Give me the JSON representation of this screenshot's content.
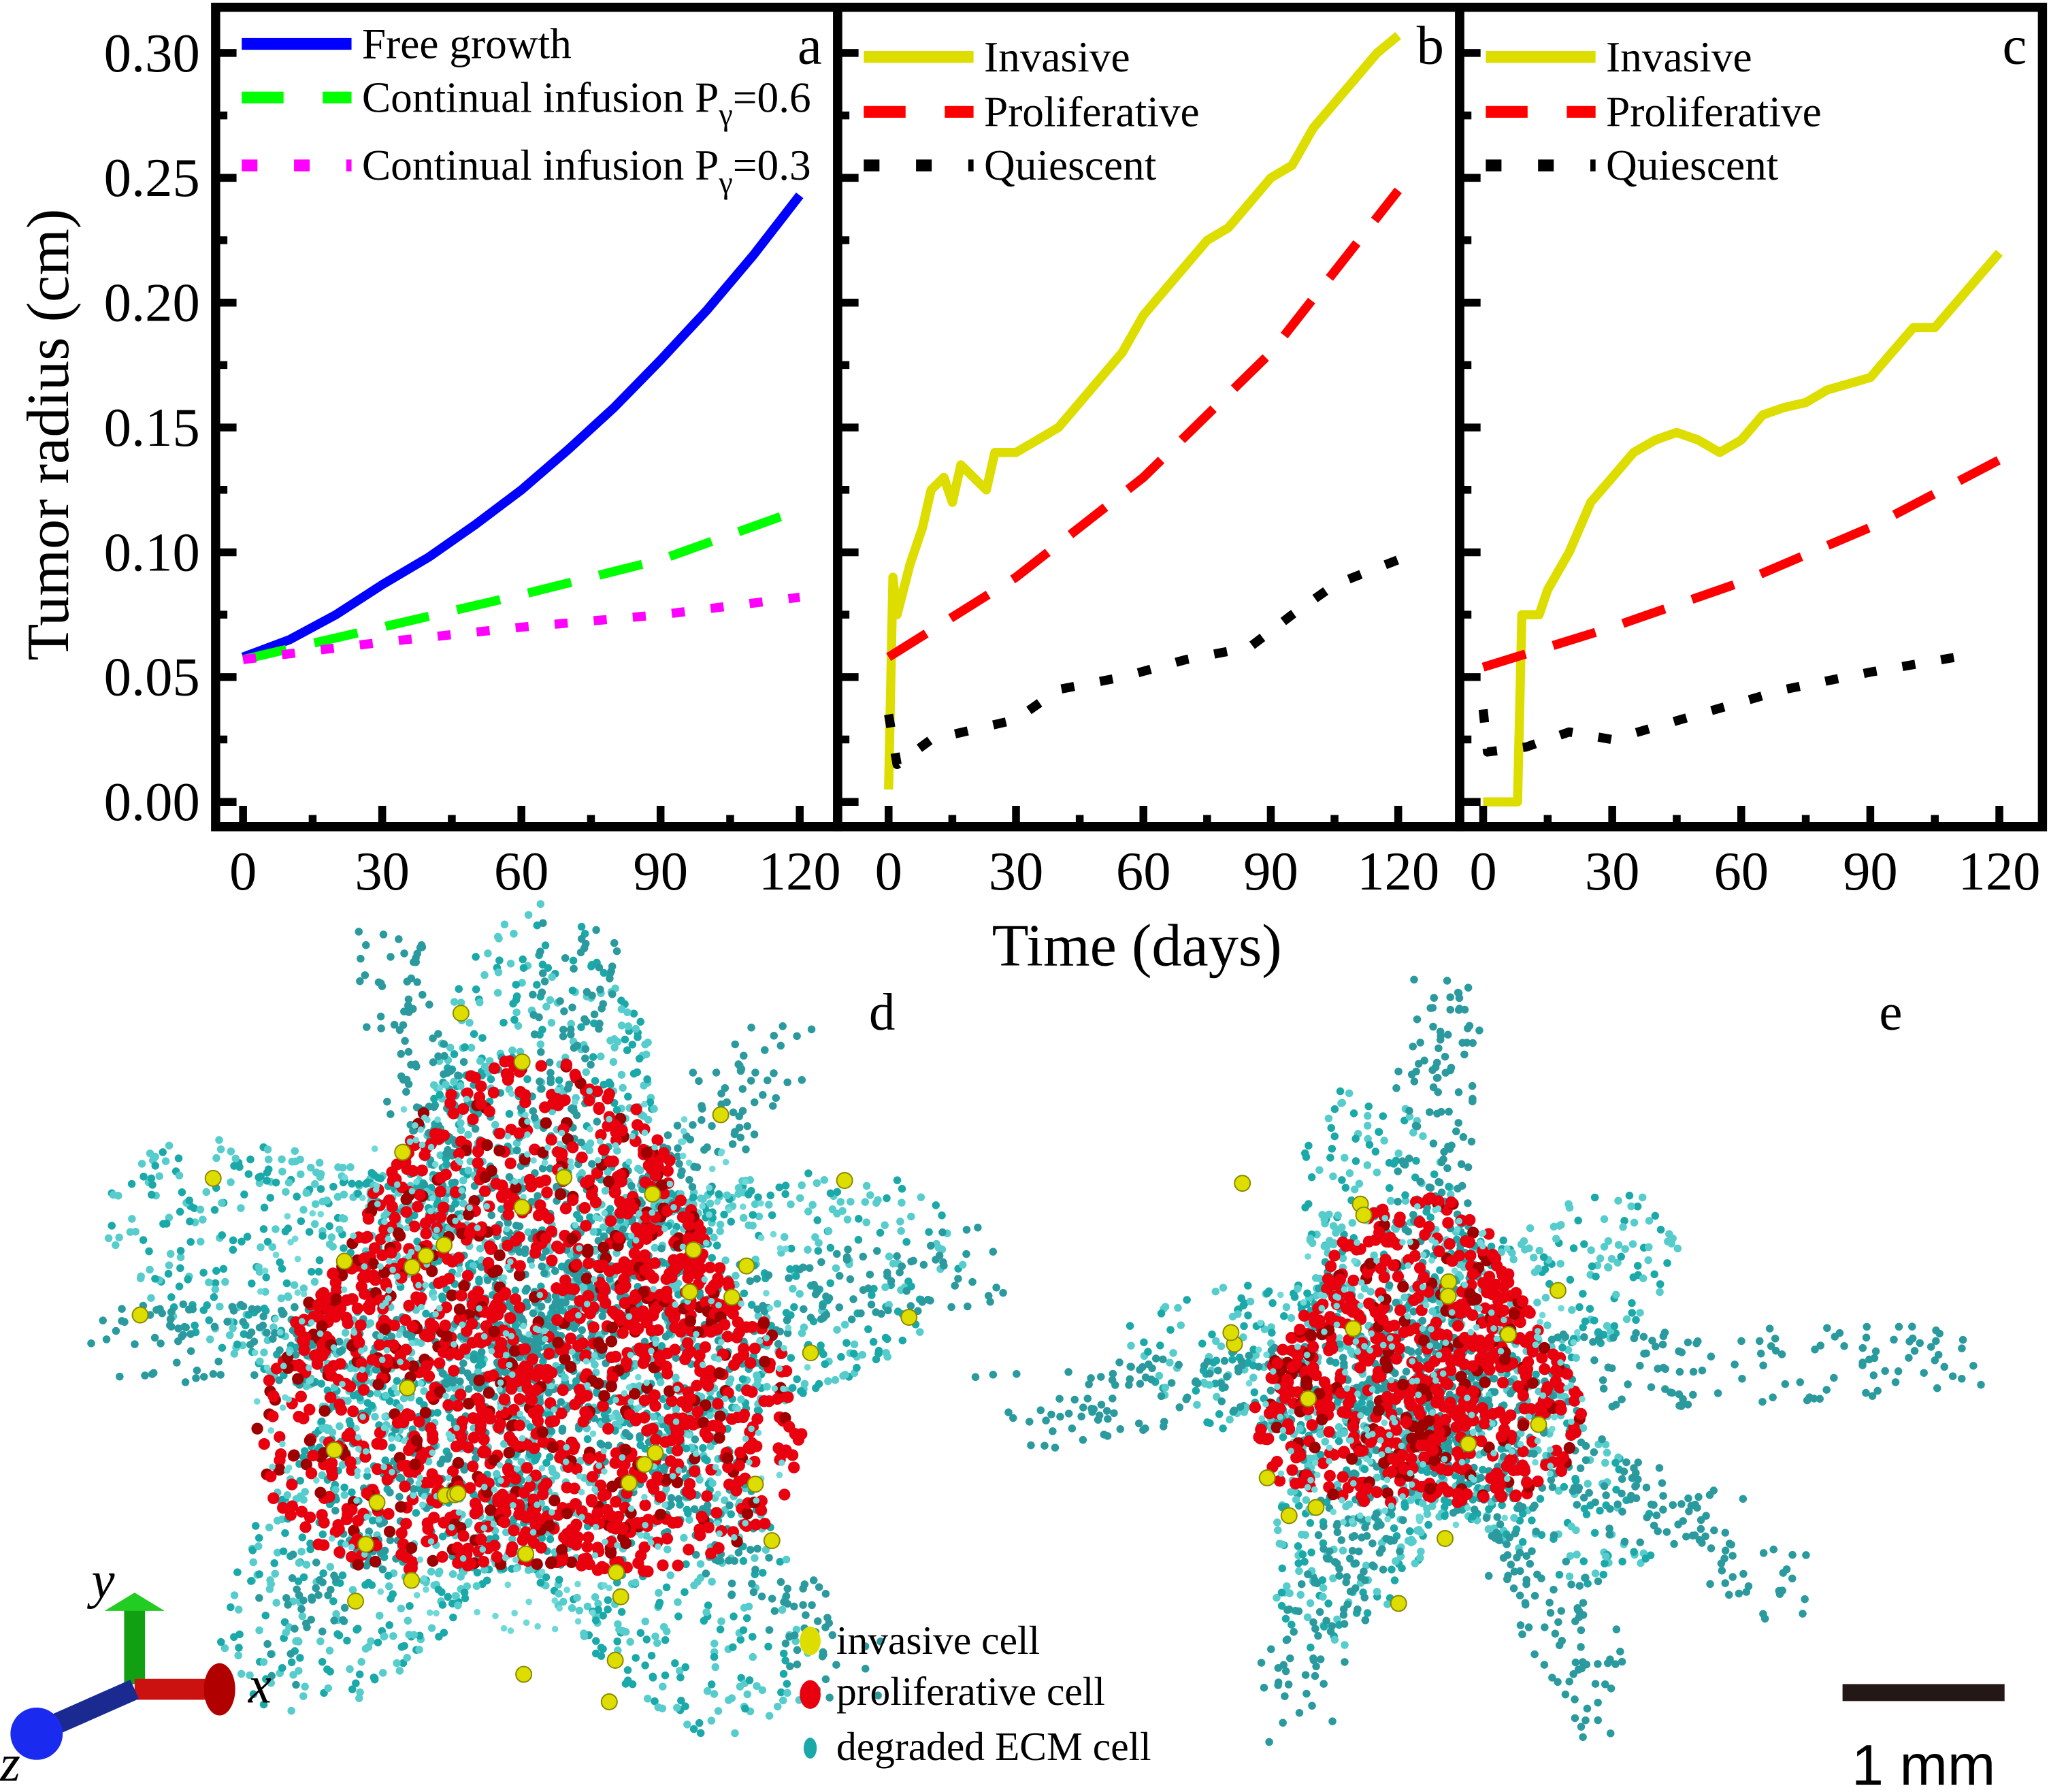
{
  "ylabel": "Tumor radius (cm)",
  "xlabel": "Time (days)",
  "chart_data": [
    {
      "type": "line",
      "panel_label": "a",
      "xlim": [
        0,
        120
      ],
      "ylim": [
        0,
        0.3
      ],
      "x_ticks": [
        "0",
        "30",
        "60",
        "90",
        "120"
      ],
      "y_ticks": [
        "0.00",
        "0.05",
        "0.10",
        "0.15",
        "0.20",
        "0.25",
        "0.30"
      ],
      "legend_position": "top-left",
      "series": [
        {
          "name": "Free growth",
          "color": "#0000ff",
          "style": "solid",
          "x": [
            0,
            10,
            20,
            30,
            40,
            50,
            60,
            70,
            80,
            90,
            100,
            110,
            120
          ],
          "y": [
            0.058,
            0.065,
            0.075,
            0.087,
            0.098,
            0.111,
            0.125,
            0.141,
            0.158,
            0.177,
            0.197,
            0.219,
            0.243
          ]
        },
        {
          "name": "Continual infusion Pγ=0.6",
          "color": "#00ff00",
          "style": "dashed",
          "x": [
            0,
            30,
            60,
            90,
            120
          ],
          "y": [
            0.057,
            0.07,
            0.083,
            0.097,
            0.117
          ]
        },
        {
          "name": "Continual infusion Pγ=0.3",
          "color": "#ff00ff",
          "style": "dotted",
          "x": [
            0,
            30,
            60,
            90,
            120
          ],
          "y": [
            0.057,
            0.064,
            0.07,
            0.075,
            0.082
          ]
        }
      ]
    },
    {
      "type": "line",
      "panel_label": "b",
      "xlim": [
        0,
        120
      ],
      "ylim": [
        0,
        0.3
      ],
      "x_ticks": [
        "0",
        "30",
        "60",
        "90",
        "120"
      ],
      "legend_position": "top-left",
      "series": [
        {
          "name": "Invasive",
          "color": "#dddd00",
          "style": "solid",
          "x": [
            0,
            1,
            2,
            5,
            8,
            10,
            13,
            15,
            17,
            20,
            23,
            25,
            30,
            35,
            40,
            45,
            50,
            55,
            60,
            65,
            70,
            75,
            80,
            85,
            90,
            95,
            100,
            105,
            110,
            115,
            120
          ],
          "y": [
            0.005,
            0.09,
            0.075,
            0.095,
            0.11,
            0.125,
            0.13,
            0.12,
            0.135,
            0.13,
            0.125,
            0.14,
            0.14,
            0.145,
            0.15,
            0.16,
            0.17,
            0.18,
            0.195,
            0.205,
            0.215,
            0.225,
            0.23,
            0.24,
            0.25,
            0.255,
            0.27,
            0.28,
            0.29,
            0.3,
            0.307
          ]
        },
        {
          "name": "Proliferative",
          "color": "#ff0000",
          "style": "dashed",
          "x": [
            0,
            30,
            60,
            90,
            120
          ],
          "y": [
            0.058,
            0.09,
            0.13,
            0.18,
            0.245
          ]
        },
        {
          "name": "Quiescent",
          "color": "#000000",
          "style": "dotted",
          "x": [
            0,
            2,
            10,
            30,
            40,
            55,
            70,
            85,
            95,
            105,
            120
          ],
          "y": [
            0.035,
            0.015,
            0.025,
            0.033,
            0.045,
            0.05,
            0.057,
            0.062,
            0.075,
            0.087,
            0.097
          ]
        }
      ]
    },
    {
      "type": "line",
      "panel_label": "c",
      "xlim": [
        0,
        120
      ],
      "ylim": [
        0,
        0.3
      ],
      "x_ticks": [
        "0",
        "30",
        "60",
        "90",
        "120"
      ],
      "legend_position": "top-left",
      "series": [
        {
          "name": "Invasive",
          "color": "#dddd00",
          "style": "solid",
          "x": [
            0,
            8,
            9,
            13,
            15,
            20,
            25,
            30,
            35,
            40,
            45,
            50,
            55,
            60,
            65,
            70,
            75,
            80,
            90,
            95,
            100,
            105,
            110,
            115,
            120
          ],
          "y": [
            0,
            0,
            0.075,
            0.075,
            0.085,
            0.1,
            0.12,
            0.13,
            0.14,
            0.145,
            0.148,
            0.145,
            0.14,
            0.145,
            0.155,
            0.158,
            0.16,
            0.165,
            0.17,
            0.18,
            0.19,
            0.19,
            0.2,
            0.21,
            0.22
          ]
        },
        {
          "name": "Proliferative",
          "color": "#ff0000",
          "style": "dashed",
          "x": [
            0,
            30,
            60,
            90,
            120
          ],
          "y": [
            0.054,
            0.07,
            0.088,
            0.11,
            0.137
          ]
        },
        {
          "name": "Quiescent",
          "color": "#000000",
          "style": "dotted",
          "x": [
            0,
            1,
            10,
            20,
            30,
            50,
            70,
            90,
            110
          ],
          "y": [
            0.037,
            0.02,
            0.022,
            0.028,
            0.025,
            0.035,
            0.045,
            0.052,
            0.058
          ]
        }
      ]
    }
  ],
  "renders": {
    "d_label": "d",
    "e_label": "e",
    "axes": {
      "x": "x",
      "y": "y",
      "z": "z"
    },
    "legend": [
      {
        "label": "invasive cell",
        "color": "#dddd00"
      },
      {
        "label": "proliferative cell",
        "color": "#e8000f"
      },
      {
        "label": "degraded ECM cell",
        "color": "#1aa8a8"
      }
    ],
    "scale_bar": "1 mm"
  }
}
